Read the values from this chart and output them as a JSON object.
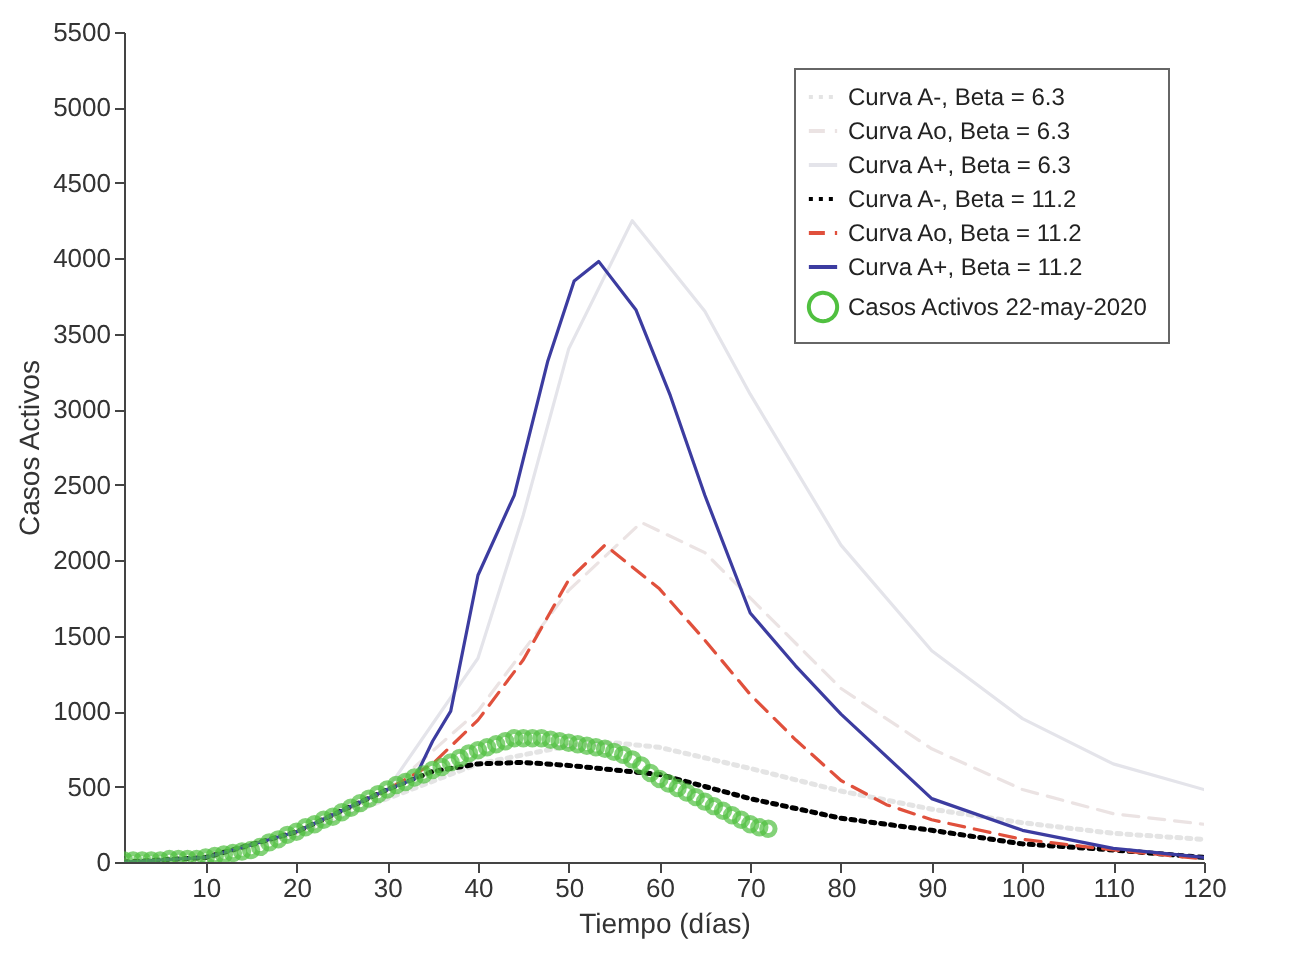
{
  "chart_data": {
    "type": "line",
    "xlabel": "Tiempo (días)",
    "ylabel": "Casos Activos",
    "xlim": [
      1,
      120
    ],
    "xticks": [
      10,
      20,
      30,
      40,
      50,
      60,
      70,
      80,
      90,
      100,
      110,
      120
    ],
    "ylim": [
      0,
      5500
    ],
    "yticks": [
      0,
      500,
      1000,
      1500,
      2000,
      2500,
      3000,
      3500,
      4000,
      4500,
      5000,
      5500
    ],
    "grid": false,
    "legend": "top right",
    "series": [
      {
        "name": "Curva A-, Beta = 6.3",
        "line_style": "dotted",
        "color": "#e4e4e4",
        "x": [
          1,
          10,
          20,
          30,
          40,
          50,
          55,
          60,
          70,
          80,
          90,
          100,
          110,
          120
        ],
        "values": [
          0,
          30,
          180,
          420,
          650,
          770,
          790,
          760,
          620,
          470,
          350,
          260,
          190,
          150
        ]
      },
      {
        "name": "Curva Ao, Beta = 6.3",
        "line_style": "dashed",
        "color": "#ebe3e3",
        "x": [
          1,
          10,
          20,
          30,
          40,
          50,
          58,
          65,
          70,
          80,
          90,
          100,
          110,
          120
        ],
        "values": [
          0,
          30,
          190,
          470,
          1000,
          1800,
          2250,
          2050,
          1750,
          1150,
          750,
          480,
          320,
          250
        ]
      },
      {
        "name": "Curva A+, Beta = 6.3",
        "line_style": "solid",
        "color": "#e4e4ea",
        "x": [
          1,
          10,
          20,
          30,
          40,
          45,
          50,
          57,
          65,
          70,
          80,
          90,
          100,
          110,
          120
        ],
        "values": [
          0,
          30,
          190,
          480,
          1350,
          2300,
          3400,
          4250,
          3650,
          3100,
          2100,
          1400,
          950,
          650,
          480
        ]
      },
      {
        "name": "Curva A-, Beta = 11.2",
        "line_style": "dotted",
        "color": "#000000",
        "x": [
          1,
          10,
          20,
          30,
          35,
          40,
          45,
          50,
          55,
          60,
          70,
          80,
          90,
          100,
          110,
          120
        ],
        "values": [
          0,
          30,
          200,
          480,
          600,
          650,
          660,
          640,
          610,
          580,
          420,
          290,
          210,
          120,
          80,
          30
        ]
      },
      {
        "name": "Curva Ao, Beta = 11.2",
        "line_style": "dashed",
        "color": "#e0503c",
        "x": [
          20,
          30,
          35,
          40,
          45,
          50,
          54,
          60,
          65,
          70,
          75,
          80,
          85,
          90,
          100,
          110,
          120
        ],
        "values": [
          200,
          480,
          650,
          940,
          1340,
          1870,
          2100,
          1810,
          1470,
          1110,
          810,
          540,
          380,
          280,
          150,
          80,
          20
        ]
      },
      {
        "name": "Curva A+, Beta = 11.2",
        "line_style": "solid",
        "color": "#3c3ca0",
        "x": [
          1,
          10,
          20,
          30,
          33,
          35,
          37,
          40,
          44,
          47.7,
          50.6,
          53.3,
          57.4,
          61.2,
          65,
          70,
          75,
          80,
          90,
          100,
          110,
          120
        ],
        "values": [
          0,
          30,
          200,
          480,
          550,
          800,
          1000,
          1900,
          2430,
          3320,
          3850,
          3980,
          3660,
          3090,
          2430,
          1650,
          1300,
          980,
          420,
          210,
          90,
          30
        ]
      },
      {
        "name": "Casos Activos  22-may-2020",
        "type": "scatter",
        "marker": "circle",
        "color": "#50c040",
        "x": [
          1,
          2,
          3,
          4,
          5,
          6,
          7,
          8,
          9,
          10,
          11,
          12,
          13,
          14,
          15,
          16,
          17,
          18,
          19,
          20,
          21,
          22,
          23,
          24,
          25,
          26,
          27,
          28,
          29,
          30,
          31,
          32,
          33,
          34,
          35,
          36,
          37,
          38,
          39,
          40,
          41,
          42,
          43,
          44,
          45,
          46,
          47,
          48,
          49,
          50,
          51,
          52,
          53,
          54,
          55,
          56,
          57,
          58,
          59,
          60,
          61,
          62,
          63,
          64,
          65,
          66,
          67,
          68,
          69,
          70,
          71,
          72
        ],
        "values": [
          10,
          10,
          10,
          10,
          10,
          20,
          20,
          20,
          20,
          30,
          40,
          50,
          60,
          70,
          80,
          100,
          130,
          150,
          180,
          200,
          230,
          250,
          280,
          300,
          330,
          360,
          390,
          420,
          450,
          480,
          510,
          530,
          560,
          580,
          610,
          630,
          660,
          690,
          720,
          740,
          760,
          780,
          800,
          820,
          820,
          820,
          820,
          810,
          800,
          790,
          780,
          770,
          760,
          750,
          730,
          710,
          680,
          640,
          590,
          550,
          520,
          490,
          460,
          430,
          400,
          370,
          340,
          310,
          280,
          250,
          230,
          220
        ]
      }
    ]
  }
}
